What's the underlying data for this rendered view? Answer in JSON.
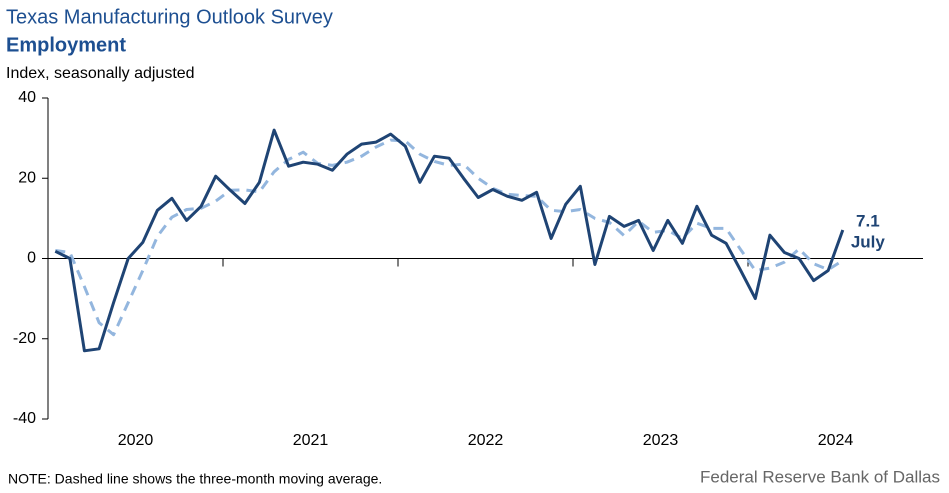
{
  "chart_data": {
    "type": "line",
    "title": "Texas Manufacturing Outlook Survey",
    "subtitle": "Employment",
    "y_label": "Index, seasonally adjusted",
    "note": "NOTE: Dashed line shows the three-month  moving average.",
    "source": "Federal Reserve Bank of Dallas",
    "annotation": "July",
    "x": [
      2020.042,
      2020.125,
      2020.208,
      2020.292,
      2020.375,
      2020.458,
      2020.542,
      2020.625,
      2020.708,
      2020.792,
      2020.875,
      2020.958,
      2021.042,
      2021.125,
      2021.208,
      2021.292,
      2021.375,
      2021.458,
      2021.542,
      2021.625,
      2021.708,
      2021.792,
      2021.875,
      2021.958,
      2022.042,
      2022.125,
      2022.208,
      2022.292,
      2022.375,
      2022.458,
      2022.542,
      2022.625,
      2022.708,
      2022.792,
      2022.875,
      2022.958,
      2023.042,
      2023.125,
      2023.208,
      2023.292,
      2023.375,
      2023.458,
      2023.542,
      2023.625,
      2023.708,
      2023.792,
      2023.875,
      2023.958,
      2024.042,
      2024.125,
      2024.208,
      2024.292,
      2024.375,
      2024.458,
      2024.542
    ],
    "series": [
      {
        "color": "#1f4474",
        "dashed": false,
        "values": [
          1.8,
          0,
          -23,
          -22.5,
          -11,
          0,
          4,
          12,
          15,
          9.5,
          13,
          20.5,
          17,
          13.7,
          19,
          32,
          23,
          24,
          23.5,
          22,
          26,
          28.5,
          29,
          31,
          28,
          19,
          25.5,
          25,
          20,
          15.2,
          17.2,
          15.5,
          14.5,
          16.5,
          5,
          13.5,
          18,
          -1.5,
          10.5,
          8,
          9.5,
          2,
          9.5,
          3.8,
          13,
          5.8,
          3.8,
          -3,
          -10,
          5.8,
          1.5,
          0,
          -5.5,
          -3,
          7.1
        ]
      },
      {
        "color": "#93b6de",
        "dashed": true,
        "values": [
          2,
          1.5,
          -7,
          -16,
          -19,
          -11,
          -3,
          5.5,
          10.3,
          12.2,
          12.5,
          14.3,
          17,
          17.1,
          16.6,
          21.6,
          24.7,
          26.5,
          23.7,
          23.2,
          24,
          25.5,
          27.8,
          29.5,
          29.3,
          26,
          24.2,
          23.2,
          23.5,
          20,
          17.5,
          16,
          15.7,
          15.5,
          12,
          11.7,
          12.2,
          10,
          9,
          5.7,
          9.3,
          6.5,
          7,
          5,
          8.8,
          7.5,
          7.5,
          2.2,
          -3,
          -2.4,
          -0.9,
          2.4,
          -1.3,
          -2.8,
          -0.5
        ]
      }
    ],
    "xlim": [
      2020,
      2025
    ],
    "xticks": [
      {
        "value": 2020.5,
        "label": "2020"
      },
      {
        "value": 2021.5,
        "label": "2021"
      },
      {
        "value": 2022.5,
        "label": "2022"
      },
      {
        "value": 2023.5,
        "label": "2023"
      },
      {
        "value": 2024.5,
        "label": "2024"
      }
    ],
    "xminorticks": [
      2021,
      2022,
      2023,
      2024
    ],
    "ylim": [
      -40,
      40
    ],
    "yticks": [
      -40,
      -20,
      0,
      20,
      40
    ],
    "grid": false
  }
}
